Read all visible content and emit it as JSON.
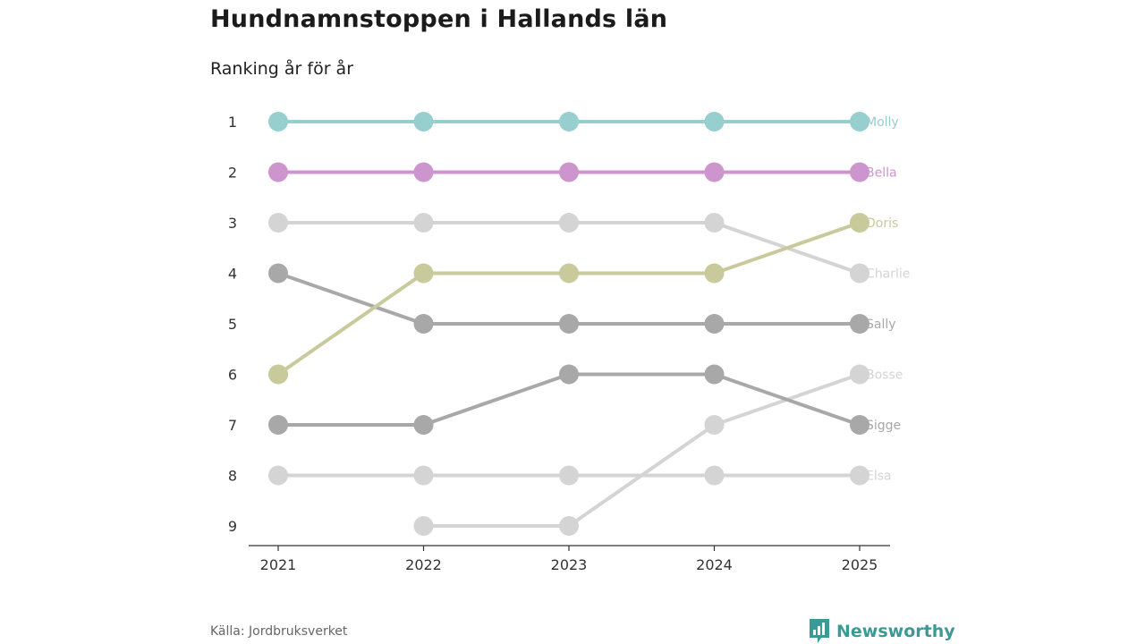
{
  "header": {
    "title": "Hundnamnstoppen i Hallands län",
    "subtitle": "Ranking år för år"
  },
  "footer": {
    "source": "Källa: Jordbruksverket",
    "brand": "Newsworthy"
  },
  "colors": {
    "brand": "#3b9a96"
  },
  "chart_data": {
    "type": "line",
    "title": "Hundnamnstoppen i Hallands län",
    "subtitle": "Ranking år för år",
    "xlabel": "",
    "ylabel": "",
    "x": [
      2021,
      2022,
      2023,
      2024,
      2025
    ],
    "x_tick_labels": [
      "2021",
      "2022",
      "2023",
      "2024",
      "2025"
    ],
    "y_tick_labels": [
      "1",
      "2",
      "3",
      "4",
      "5",
      "6",
      "7",
      "8",
      "9"
    ],
    "ylim": [
      1,
      9
    ],
    "y_inverted": true,
    "series": [
      {
        "name": "Molly",
        "color": "#97cfce",
        "values": [
          1,
          1,
          1,
          1,
          1
        ]
      },
      {
        "name": "Bella",
        "color": "#cc95cd",
        "values": [
          2,
          2,
          2,
          2,
          2
        ]
      },
      {
        "name": "Doris",
        "color": "#c9ca9b",
        "values": [
          6,
          4,
          4,
          4,
          3
        ]
      },
      {
        "name": "Charlie",
        "color": "#d4d4d4",
        "values": [
          3,
          3,
          3,
          3,
          4
        ]
      },
      {
        "name": "Sally",
        "color": "#a8a8a8",
        "values": [
          4,
          5,
          5,
          5,
          5
        ]
      },
      {
        "name": "Bosse",
        "color": "#d4d4d4",
        "values": [
          null,
          9,
          9,
          7,
          6
        ]
      },
      {
        "name": "Sigge",
        "color": "#a8a8a8",
        "values": [
          7,
          7,
          6,
          6,
          7
        ]
      },
      {
        "name": "Elsa",
        "color": "#d4d4d4",
        "values": [
          8,
          8,
          8,
          8,
          8
        ]
      }
    ]
  }
}
